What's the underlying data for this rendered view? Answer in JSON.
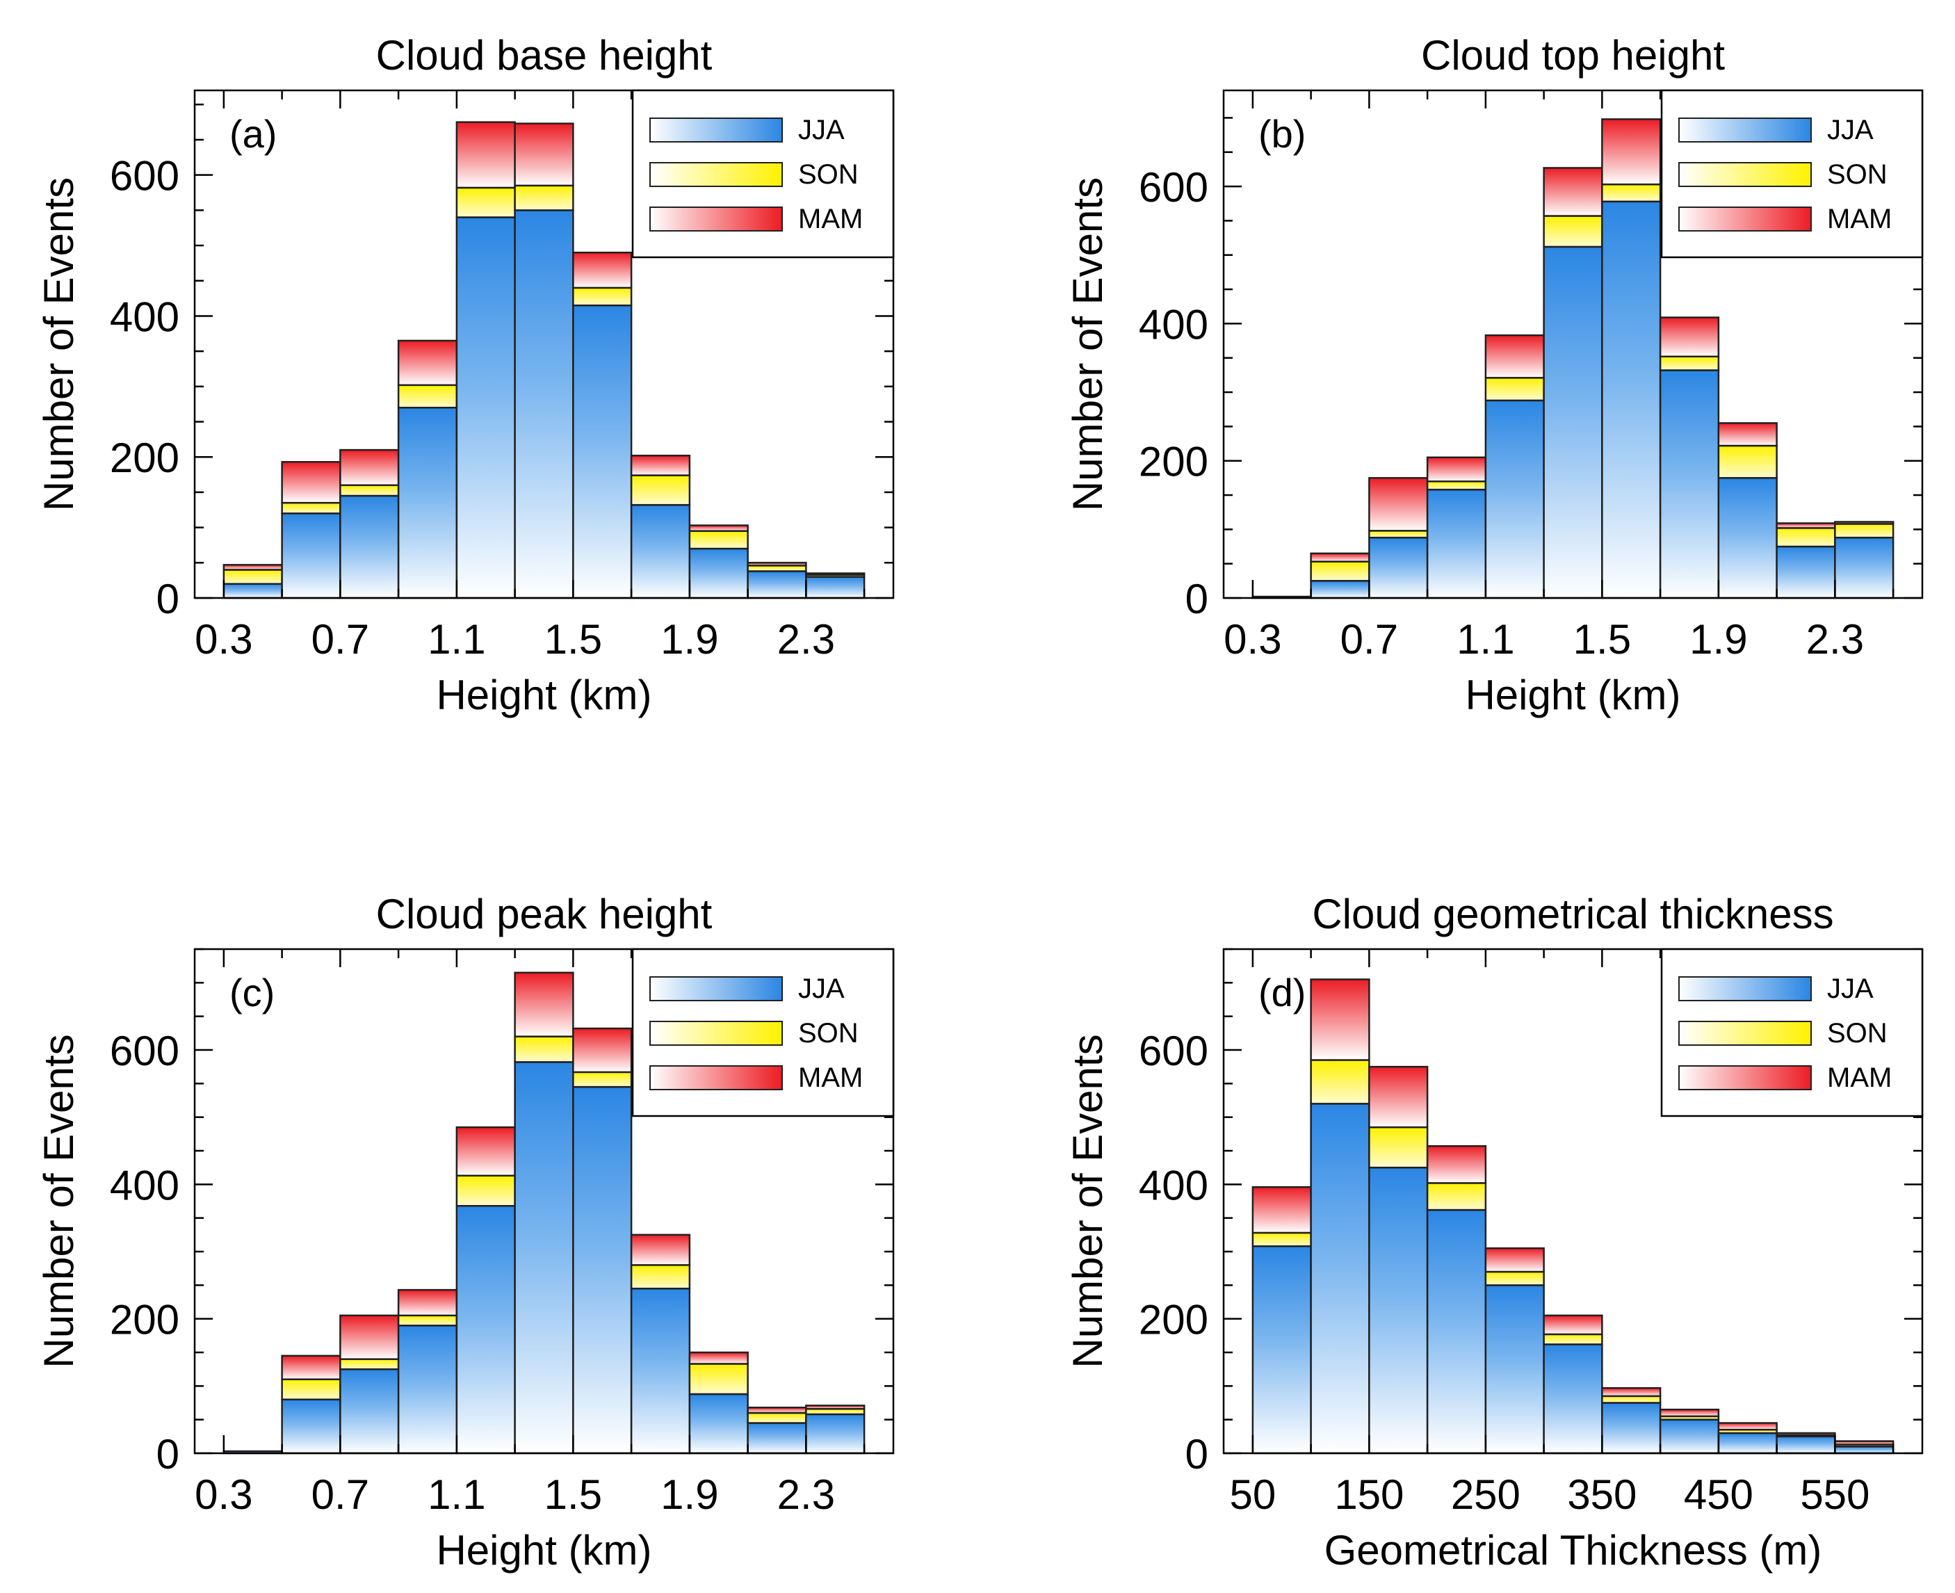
{
  "colors": {
    "JJA": "#2b86e3",
    "SON": "#fff200",
    "MAM": "#ec1c24",
    "axis": "#000000",
    "background": "#ffffff"
  },
  "chart_data": [
    {
      "panel": "a",
      "type": "bar",
      "stacked": true,
      "title": "Cloud base height",
      "panel_label": "(a)",
      "xlabel": "Height (km)",
      "ylabel": "Number of Events",
      "xlim": [
        0.2,
        2.6
      ],
      "ylim": [
        0,
        720
      ],
      "xticks": [
        0.3,
        0.7,
        1.1,
        1.5,
        1.9,
        2.3
      ],
      "xtick_labels": [
        "0.3",
        "0.7",
        "1.1",
        "1.5",
        "1.9",
        "2.3"
      ],
      "yticks": [
        0,
        200,
        400,
        600
      ],
      "ytick_labels": [
        "0",
        "200",
        "400",
        "600"
      ],
      "bin_width": 0.2,
      "bin_starts": [
        0.3,
        0.5,
        0.7,
        0.9,
        1.1,
        1.3,
        1.5,
        1.7,
        1.9,
        2.1,
        2.3
      ],
      "legend": [
        "JJA",
        "SON",
        "MAM"
      ],
      "legend_position": "top-right",
      "series": [
        {
          "name": "JJA",
          "values": [
            20,
            120,
            145,
            270,
            540,
            550,
            415,
            132,
            70,
            38,
            30
          ]
        },
        {
          "name": "SON",
          "values": [
            20,
            15,
            15,
            32,
            42,
            35,
            25,
            42,
            25,
            8,
            3
          ]
        },
        {
          "name": "MAM",
          "values": [
            7,
            58,
            50,
            63,
            93,
            88,
            50,
            28,
            8,
            4,
            2
          ]
        }
      ]
    },
    {
      "panel": "b",
      "type": "bar",
      "stacked": true,
      "title": "Cloud top height",
      "panel_label": "(b)",
      "xlabel": "Height (km)",
      "ylabel": "Number of Events",
      "xlim": [
        0.2,
        2.6
      ],
      "ylim": [
        0,
        740
      ],
      "xticks": [
        0.3,
        0.7,
        1.1,
        1.5,
        1.9,
        2.3
      ],
      "xtick_labels": [
        "0.3",
        "0.7",
        "1.1",
        "1.5",
        "1.9",
        "2.3"
      ],
      "yticks": [
        0,
        200,
        400,
        600
      ],
      "ytick_labels": [
        "0",
        "200",
        "400",
        "600"
      ],
      "bin_width": 0.2,
      "bin_starts": [
        0.3,
        0.5,
        0.7,
        0.9,
        1.1,
        1.3,
        1.5,
        1.7,
        1.9,
        2.1,
        2.3
      ],
      "legend": [
        "JJA",
        "SON",
        "MAM"
      ],
      "legend_position": "top-right",
      "series": [
        {
          "name": "JJA",
          "values": [
            2,
            25,
            88,
            158,
            288,
            512,
            578,
            332,
            175,
            75,
            88
          ]
        },
        {
          "name": "SON",
          "values": [
            0,
            28,
            10,
            12,
            33,
            45,
            25,
            20,
            47,
            27,
            20
          ]
        },
        {
          "name": "MAM",
          "values": [
            0,
            12,
            77,
            35,
            62,
            70,
            95,
            57,
            33,
            7,
            3
          ]
        }
      ]
    },
    {
      "panel": "c",
      "type": "bar",
      "stacked": true,
      "title": "Cloud peak height",
      "panel_label": "(c)",
      "xlabel": "Height (km)",
      "ylabel": "Number of Events",
      "xlim": [
        0.2,
        2.6
      ],
      "ylim": [
        0,
        750
      ],
      "xticks": [
        0.3,
        0.7,
        1.1,
        1.5,
        1.9,
        2.3
      ],
      "xtick_labels": [
        "0.3",
        "0.7",
        "1.1",
        "1.5",
        "1.9",
        "2.3"
      ],
      "yticks": [
        0,
        200,
        400,
        600
      ],
      "ytick_labels": [
        "0",
        "200",
        "400",
        "600"
      ],
      "bin_width": 0.2,
      "bin_starts": [
        0.3,
        0.5,
        0.7,
        0.9,
        1.1,
        1.3,
        1.5,
        1.7,
        1.9,
        2.1,
        2.3
      ],
      "legend": [
        "JJA",
        "SON",
        "MAM"
      ],
      "legend_position": "top-right",
      "series": [
        {
          "name": "JJA",
          "values": [
            3,
            80,
            125,
            190,
            368,
            582,
            545,
            245,
            88,
            45,
            58
          ]
        },
        {
          "name": "SON",
          "values": [
            0,
            30,
            15,
            15,
            45,
            38,
            22,
            35,
            45,
            15,
            8
          ]
        },
        {
          "name": "MAM",
          "values": [
            0,
            35,
            65,
            38,
            72,
            95,
            65,
            45,
            17,
            8,
            5
          ]
        }
      ]
    },
    {
      "panel": "d",
      "type": "bar",
      "stacked": true,
      "title": "Cloud geometrical thickness",
      "panel_label": "(d)",
      "xlabel": "Geometrical Thickness (m)",
      "ylabel": "Number of Events",
      "xlim": [
        25,
        625
      ],
      "ylim": [
        0,
        750
      ],
      "xticks": [
        50,
        150,
        250,
        350,
        450,
        550
      ],
      "xtick_labels": [
        "50",
        "150",
        "250",
        "350",
        "450",
        "550"
      ],
      "yticks": [
        0,
        200,
        400,
        600
      ],
      "ytick_labels": [
        "0",
        "200",
        "400",
        "600"
      ],
      "bin_width": 50,
      "bin_starts": [
        50,
        100,
        150,
        200,
        250,
        300,
        350,
        400,
        450,
        500,
        550
      ],
      "legend": [
        "JJA",
        "SON",
        "MAM"
      ],
      "legend_position": "top-right",
      "series": [
        {
          "name": "JJA",
          "values": [
            308,
            520,
            425,
            362,
            250,
            162,
            75,
            50,
            30,
            25,
            10
          ]
        },
        {
          "name": "SON",
          "values": [
            20,
            65,
            60,
            40,
            20,
            15,
            10,
            5,
            5,
            2,
            3
          ]
        },
        {
          "name": "MAM",
          "values": [
            68,
            120,
            90,
            55,
            35,
            28,
            12,
            10,
            10,
            3,
            5
          ]
        }
      ]
    }
  ]
}
